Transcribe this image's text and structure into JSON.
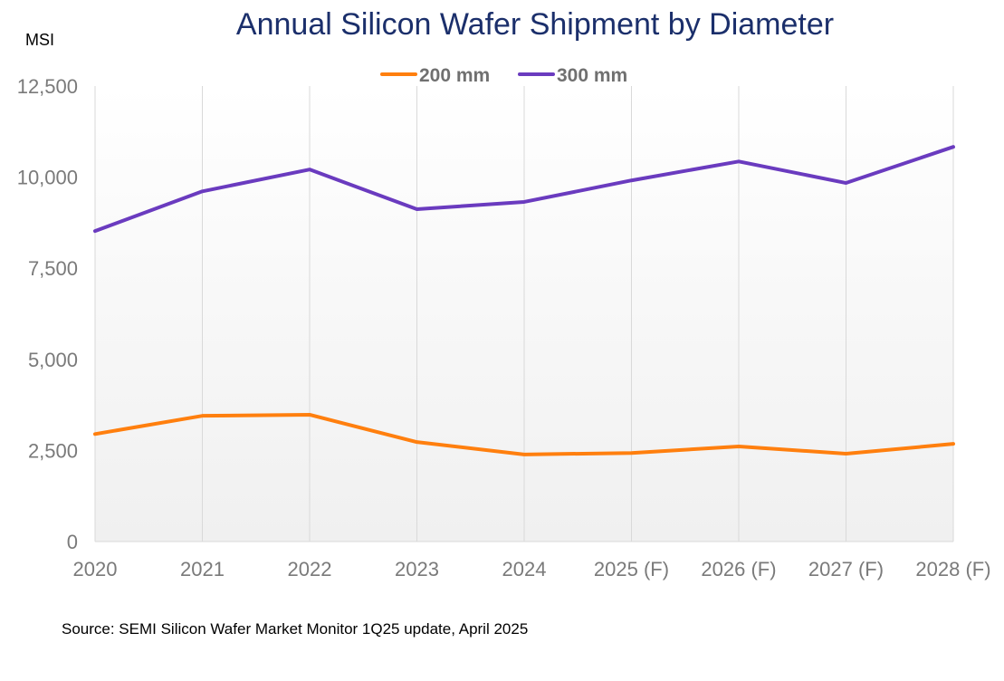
{
  "chart_data": {
    "type": "line",
    "title": "Annual Silicon Wafer Shipment by Diameter",
    "ylabel": "MSI",
    "xlabel": "",
    "categories": [
      "2020",
      "2021",
      "2022",
      "2023",
      "2024",
      "2025 (F)",
      "2026 (F)",
      "2027 (F)",
      "2028 (F)"
    ],
    "ylim": [
      0,
      12500
    ],
    "yticks": [
      0,
      2500,
      5000,
      7500,
      10000,
      12500
    ],
    "ytick_labels": [
      "0",
      "2,500",
      "5,000",
      "7,500",
      "10,000",
      "12,500"
    ],
    "grid": "vertical",
    "legend_position": "top",
    "series": [
      {
        "name": "200 mm",
        "color": "#ff7f0e",
        "values": [
          2950,
          3450,
          3480,
          2730,
          2390,
          2430,
          2610,
          2410,
          2680
        ]
      },
      {
        "name": "300 mm",
        "color": "#6a3bbf",
        "values": [
          8520,
          9610,
          10210,
          9120,
          9320,
          9910,
          10430,
          9840,
          10830
        ]
      }
    ],
    "source": "Source: SEMI Silicon Wafer Market Monitor 1Q25 update, April 2025"
  }
}
